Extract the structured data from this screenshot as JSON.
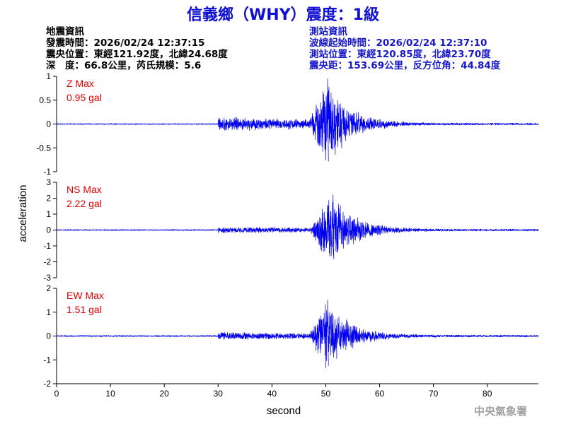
{
  "header": {
    "title": "信義鄉（WHY）震度：1級",
    "left_lines": [
      "地震資訊",
      "發震時間：2026/02/24 12:37:15",
      "震央位置：東經121.92度，北緯24.68度",
      "深　度：66.8公里，芮氏規模：5.6"
    ],
    "right_lines": [
      "測站資訊",
      "波線起始時間：2026/02/24 12:37:10",
      "測站位置：東經120.85度，北緯23.70度",
      "震央距：153.69公里，反方位角：44.84度"
    ]
  },
  "chart_data": {
    "type": "line",
    "xlabel": "second",
    "ylabel": "acceleration",
    "xlim": [
      0,
      89.5
    ],
    "xticks": [
      0,
      10,
      20,
      30,
      40,
      50,
      60,
      70,
      80
    ],
    "line_color": "#0000ee",
    "panels": [
      {
        "component": "Z",
        "label": "Z Max",
        "max_text": "0.95 gal",
        "max": 0.95,
        "ylim": [
          -1,
          1
        ],
        "yticks": [
          -1,
          -0.5,
          0,
          0.5,
          1
        ],
        "noise_pre": 0.012,
        "p_arrival": 30,
        "p_amp": 0.13,
        "s_arrival": 47,
        "s_peak": 50,
        "s_amp": 0.95,
        "coda_end_amp": 0.02
      },
      {
        "component": "NS",
        "label": "NS Max",
        "max_text": "2.22 gal",
        "max": 2.22,
        "ylim": [
          -3,
          3
        ],
        "yticks": [
          -3,
          -2,
          -1,
          0,
          1,
          2,
          3
        ],
        "noise_pre": 0.04,
        "p_arrival": 30,
        "p_amp": 0.15,
        "s_arrival": 47,
        "s_peak": 51,
        "s_amp": 2.22,
        "coda_end_amp": 0.06
      },
      {
        "component": "EW",
        "label": "EW Max",
        "max_text": "1.51 gal",
        "max": 1.51,
        "ylim": [
          -2,
          2
        ],
        "yticks": [
          -2,
          -1,
          0,
          1,
          2
        ],
        "noise_pre": 0.03,
        "p_arrival": 30,
        "p_amp": 0.13,
        "s_arrival": 47,
        "s_peak": 50,
        "s_amp": 1.51,
        "coda_end_amp": 0.04
      }
    ]
  },
  "footer": {
    "credit": "中央氣象署"
  }
}
